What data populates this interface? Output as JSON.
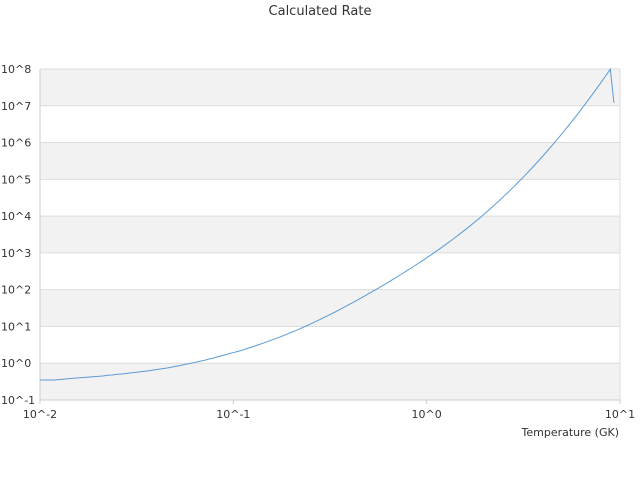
{
  "chart_data": {
    "type": "line",
    "title": "Calculated Rate",
    "xlabel": "Temperature (GK)",
    "ylabel": "",
    "xscale": "log",
    "yscale": "log",
    "xlim": [
      0.01,
      10
    ],
    "ylim": [
      0.1,
      100000000
    ],
    "x_tick_labels": [
      "10^-2",
      "10^-1",
      "10^0",
      "10^1"
    ],
    "y_tick_labels": [
      "10^-1",
      "10^0",
      "10^1",
      "10^2",
      "10^3",
      "10^4",
      "10^5",
      "10^6",
      "10^7",
      "10^8"
    ],
    "grid": "horizontal alternating bands",
    "legend": "none",
    "colors": {
      "line": "#5b9bd5",
      "band": "#f2f2f2",
      "grid": "#dddddd",
      "text": "#333333"
    },
    "series": [
      {
        "x": [
          0.01,
          0.0107,
          0.0113,
          0.0119,
          0.0126,
          0.0133,
          0.0141,
          0.0149,
          0.0158,
          0.0168,
          0.0178,
          0.0188,
          0.02,
          0.0211,
          0.0224,
          0.0237,
          0.0251,
          0.0266,
          0.0282,
          0.0299,
          0.0316,
          0.0335,
          0.0355,
          0.0376,
          0.0398,
          0.0422,
          0.0447,
          0.0473,
          0.0501,
          0.0531,
          0.0562,
          0.0596,
          0.0631,
          0.0668,
          0.0708,
          0.075,
          0.0794,
          0.0841,
          0.0891,
          0.0944,
          0.1,
          0.1059,
          0.1122,
          0.1189,
          0.1259,
          0.1334,
          0.1413,
          0.1496,
          0.1585,
          0.1679,
          0.1778,
          0.1884,
          0.1995,
          0.2113,
          0.2239,
          0.2371,
          0.2512,
          0.2661,
          0.2818,
          0.2985,
          0.3162,
          0.335,
          0.3548,
          0.3758,
          0.3981,
          0.4217,
          0.4467,
          0.4732,
          0.5012,
          0.5309,
          0.5623,
          0.5957,
          0.631,
          0.6683,
          0.7079,
          0.7499,
          0.7943,
          0.8414,
          0.8913,
          0.9441,
          1.0,
          1.059,
          1.122,
          1.189,
          1.259,
          1.334,
          1.413,
          1.496,
          1.585,
          1.679,
          1.778,
          1.884,
          1.995,
          2.113,
          2.239,
          2.371,
          2.512,
          2.661,
          2.818,
          2.985,
          3.162,
          3.35,
          3.548,
          3.758,
          3.981,
          4.217,
          4.467,
          4.732,
          5.012,
          5.309,
          5.623,
          5.957,
          6.31,
          6.683,
          7.079,
          7.499,
          7.943,
          8.414,
          8.913,
          9.3
        ],
        "y": [
          0.35,
          0.35,
          0.35,
          0.35,
          0.36,
          0.37,
          0.38,
          0.39,
          0.4,
          0.41,
          0.42,
          0.43,
          0.44,
          0.45,
          0.47,
          0.48,
          0.5,
          0.51,
          0.53,
          0.55,
          0.57,
          0.59,
          0.61,
          0.64,
          0.67,
          0.7,
          0.73,
          0.77,
          0.82,
          0.87,
          0.93,
          0.98,
          1.05,
          1.12,
          1.2,
          1.3,
          1.4,
          1.52,
          1.65,
          1.8,
          1.95,
          2.1,
          2.3,
          2.55,
          2.8,
          3.1,
          3.45,
          3.85,
          4.3,
          4.8,
          5.4,
          6.1,
          6.9,
          7.8,
          8.9,
          10.2,
          11.7,
          13.5,
          15.6,
          18.1,
          21.0,
          24.5,
          28.7,
          33.7,
          39.6,
          46.7,
          55.2,
          65.4,
          77.6,
          92.3,
          110.0,
          131.5,
          157.6,
          189.3,
          227.9,
          275.0,
          332.7,
          403.7,
          491.2,
          599.5,
          734.0,
          901.0,
          1110.0,
          1375.0,
          1710.0,
          2135.0,
          2680.0,
          3380.0,
          4280.0,
          5450.0,
          6980.0,
          8980.0,
          11630.0,
          15150.0,
          19870.0,
          26220.0,
          34820.0,
          46520.0,
          62550.0,
          84650.0,
          115300.0,
          158100.0,
          218200.0,
          303300.0,
          424500.0,
          598300.0,
          849000.0,
          1213000.0,
          1746000.0,
          2531000.0,
          3696000.0,
          5437000.0,
          8056000.0,
          12020000.0,
          18070000.0,
          27350000.0,
          41700000.0,
          64030000.0,
          99010000.0,
          12000000.0
        ]
      }
    ]
  }
}
